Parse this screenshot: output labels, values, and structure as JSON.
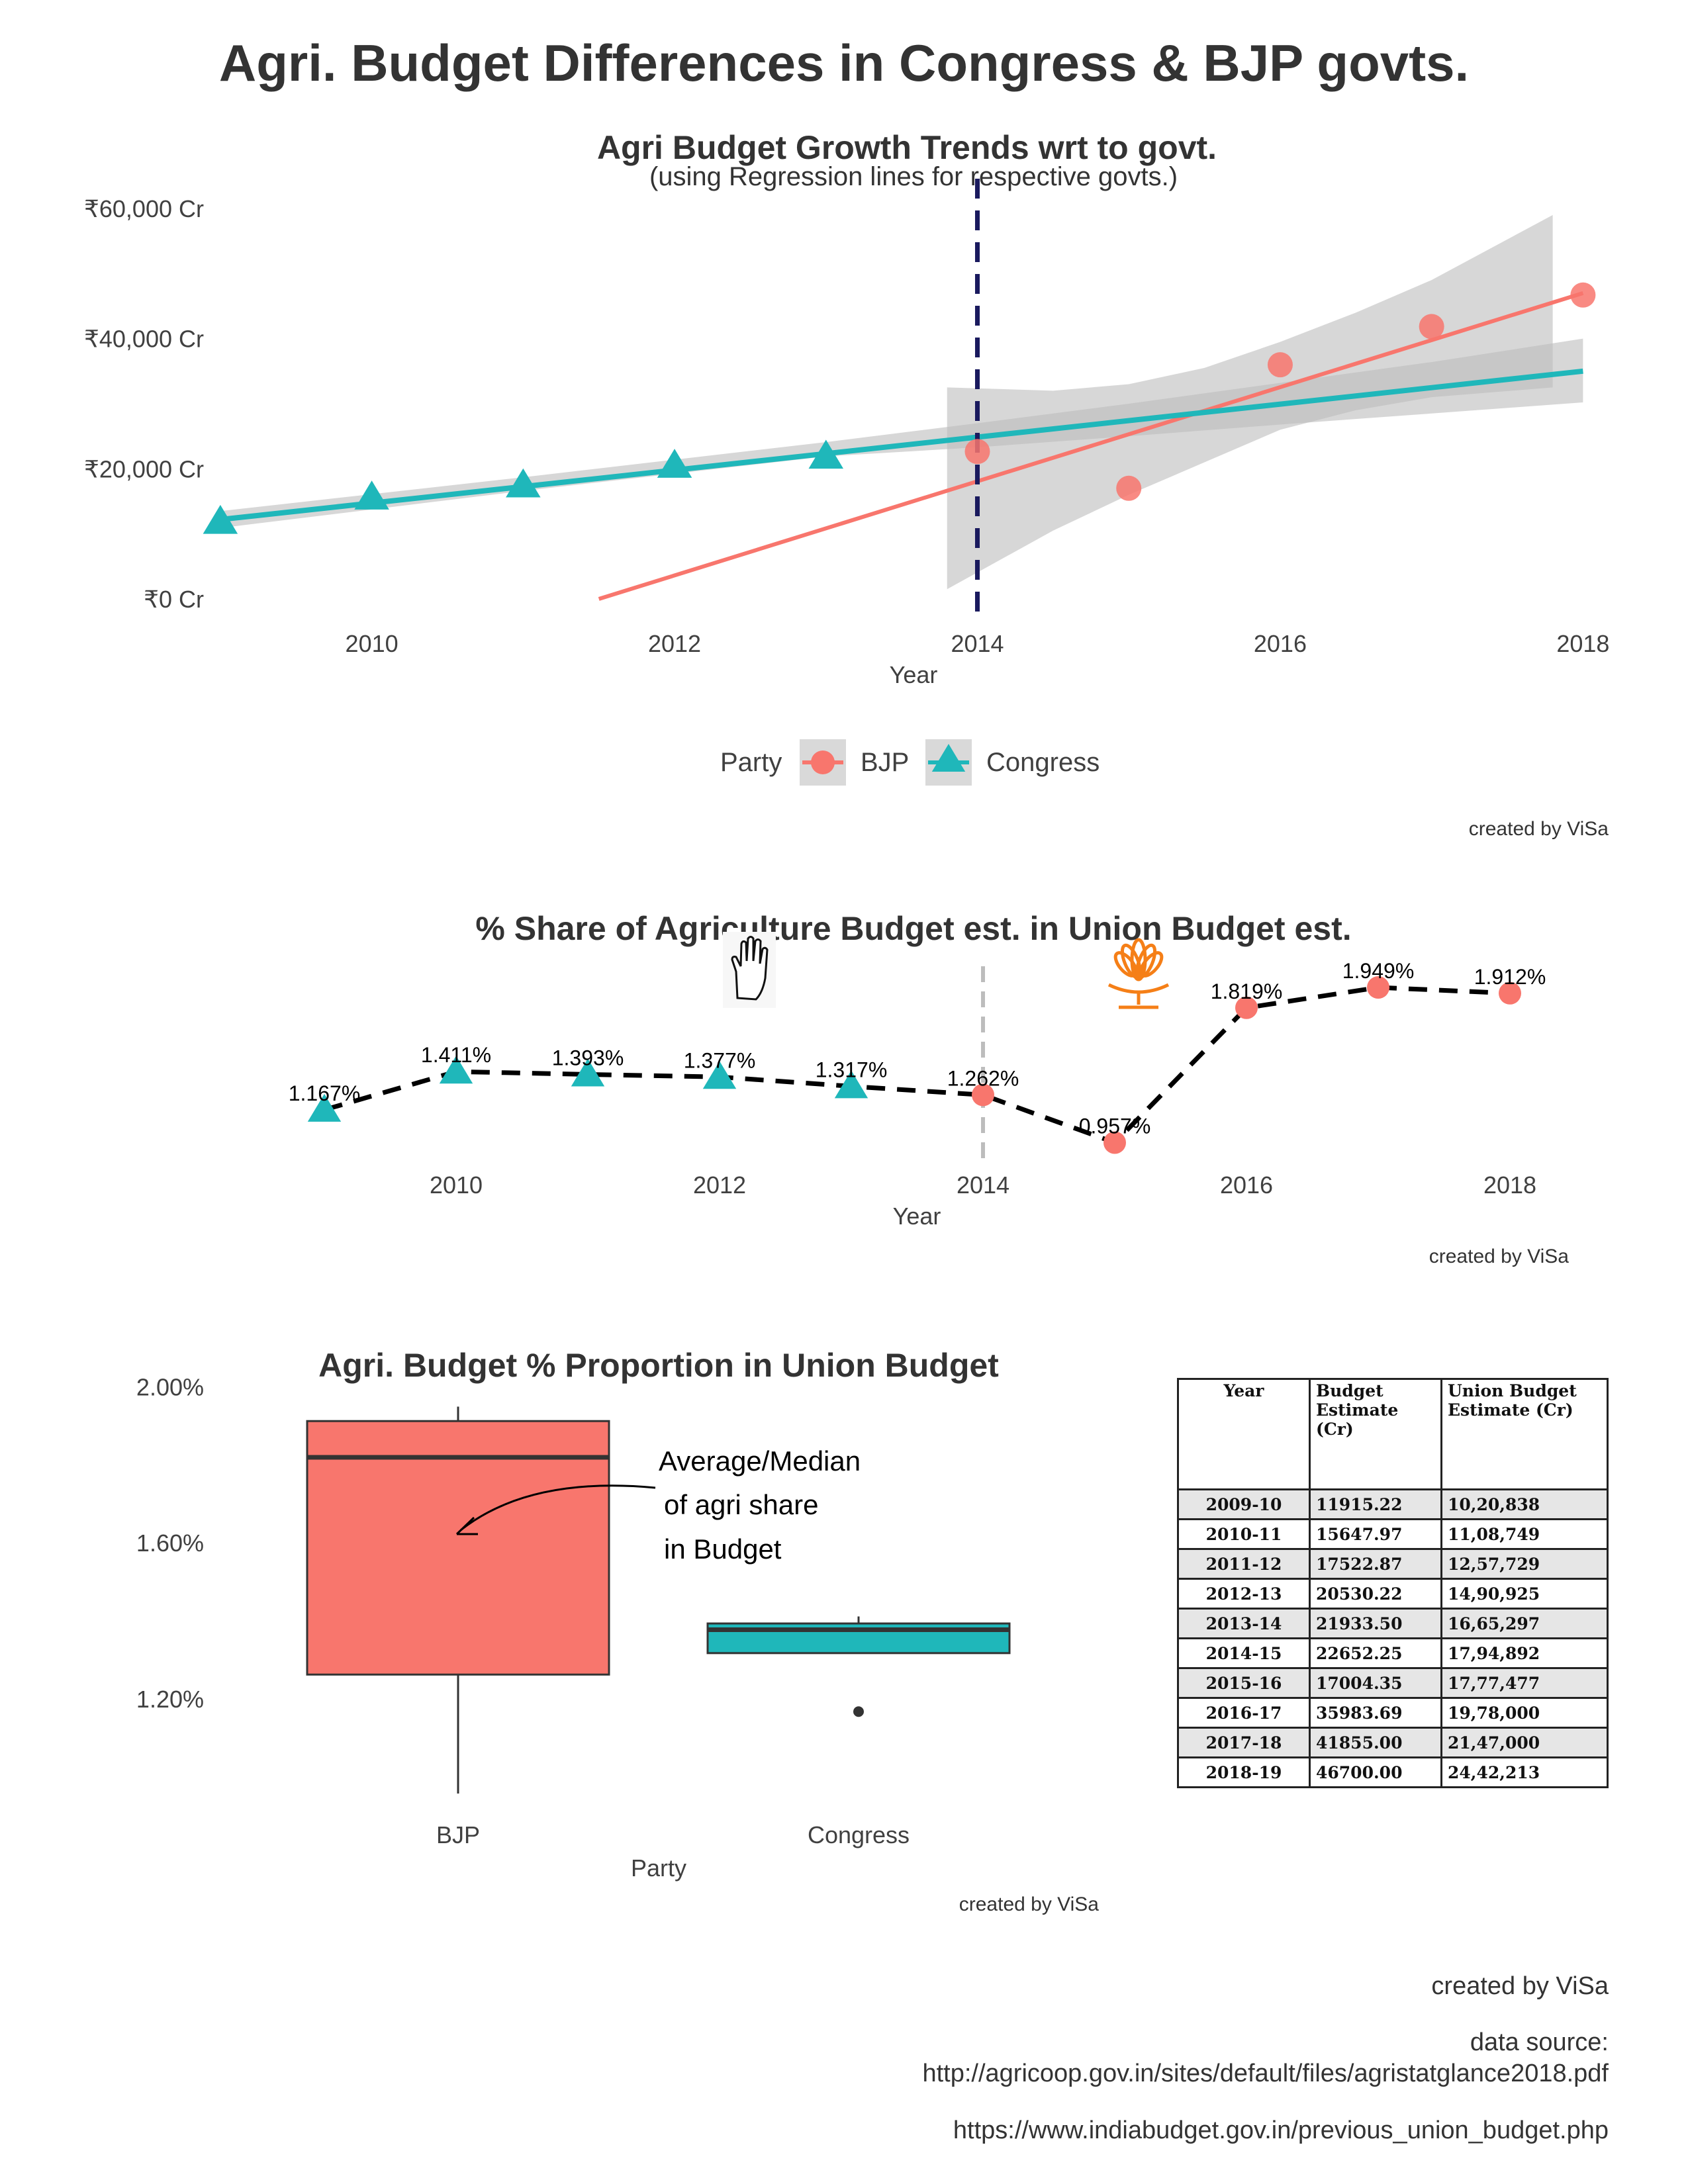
{
  "title": "Agri. Budget Differences in Congress & BJP govts.",
  "colors": {
    "bjp": "#F8766D",
    "congress": "#1FB7BA",
    "divider": "#1a1a5e",
    "band": "#bdbdbd"
  },
  "chart_data": [
    {
      "type": "scatter",
      "title": "Agri Budget Growth Trends wrt to govt.",
      "subtitle": "(using Regression lines for respective govts.)",
      "xlabel": "Year",
      "ylabel": "",
      "xlim": [
        2008.9,
        2018.3
      ],
      "ylim": [
        0,
        60000
      ],
      "x_ticks": [
        2010,
        2012,
        2014,
        2016,
        2018
      ],
      "y_ticks": [
        0,
        20000,
        40000,
        60000
      ],
      "y_tick_labels": [
        "₹0 Cr",
        "₹20,000 Cr",
        "₹40,000 Cr",
        "₹60,000 Cr"
      ],
      "vline": 2014,
      "legend_title": "Party",
      "legend_position": "bottom",
      "legend": [
        "BJP",
        "Congress"
      ],
      "credit": "created by ViSa",
      "series": [
        {
          "name": "BJP",
          "marker": "circle",
          "x": [
            2014,
            2015,
            2016,
            2017,
            2018
          ],
          "y": [
            22652.25,
            17004.35,
            35983.69,
            41855.0,
            46700.0
          ],
          "regression": {
            "x": [
              2011.5,
              2018
            ],
            "y": [
              0,
              47000
            ]
          },
          "ci": {
            "x": [
              2013.8,
              2014.5,
              2015,
              2015.5,
              2016,
              2016.5,
              2017,
              2017.8
            ],
            "upper": [
              32500,
              32000,
              33000,
              35500,
              39500,
              44000,
              49000,
              59000
            ],
            "lower": [
              1500,
              10500,
              16000,
              21000,
              26000,
              29000,
              31000,
              32500
            ]
          }
        },
        {
          "name": "Congress",
          "marker": "triangle",
          "x": [
            2009,
            2010,
            2011,
            2012,
            2013
          ],
          "y": [
            11915.22,
            15647.97,
            17522.87,
            20530.22,
            21933.5
          ],
          "regression": {
            "x": [
              2009,
              2018
            ],
            "y": [
              12200,
              35000
            ]
          },
          "ci": {
            "x": [
              2009,
              2011,
              2013,
              2014,
              2015,
              2016,
              2017,
              2018
            ],
            "upper": [
              13500,
              18700,
              24100,
              27000,
              30000,
              33200,
              36400,
              40000
            ],
            "lower": [
              10900,
              16600,
              21900,
              23300,
              25000,
              26800,
              28500,
              30200
            ]
          }
        }
      ]
    },
    {
      "type": "line",
      "title": "% Share of Agriculture Budget est. in Union Budget est.",
      "xlabel": "Year",
      "xlim": [
        2008.6,
        2018.6
      ],
      "ylim": [
        0.9,
        2.0
      ],
      "x_ticks": [
        2010,
        2012,
        2014,
        2016,
        2018
      ],
      "vline": 2014,
      "credit": "created by ViSa",
      "x": [
        2009,
        2010,
        2011,
        2012,
        2013,
        2014,
        2015,
        2016,
        2017,
        2018
      ],
      "y": [
        1.167,
        1.411,
        1.393,
        1.377,
        1.317,
        1.262,
        0.957,
        1.819,
        1.949,
        1.912
      ],
      "party": [
        "Congress",
        "Congress",
        "Congress",
        "Congress",
        "Congress",
        "BJP",
        "BJP",
        "BJP",
        "BJP",
        "BJP"
      ],
      "labels": [
        "1.167%",
        "1.411%",
        "1.393%",
        "1.377%",
        "1.317%",
        "1.262%",
        "0.957%",
        "1.819%",
        "1.949%",
        "1.912%"
      ],
      "icons": [
        "congress-hand-icon",
        "bjp-lotus-icon"
      ]
    },
    {
      "type": "box",
      "title": "Agri. Budget % Proportion in Union Budget",
      "xlabel": "Party",
      "categories": [
        "BJP",
        "Congress"
      ],
      "ylim": [
        0.94,
        2.06
      ],
      "y_ticks": [
        1.2,
        1.6,
        2.0
      ],
      "y_tick_labels": [
        "1.20%",
        "1.60%",
        "2.00%"
      ],
      "boxes": [
        {
          "name": "BJP",
          "min": 0.957,
          "q1": 1.262,
          "median": 1.819,
          "q3": 1.912,
          "max": 1.949,
          "outliers": []
        },
        {
          "name": "Congress",
          "min": 1.317,
          "q1": 1.317,
          "median": 1.377,
          "q3": 1.393,
          "max": 1.411,
          "outliers": [
            1.167
          ]
        }
      ],
      "annotation": [
        "Average/Median",
        " of agri share",
        " in Budget"
      ],
      "credit": "created by ViSa"
    }
  ],
  "table": {
    "headers": [
      "Year",
      "Budget Estimate (Cr)",
      "Union Budget Estimate (Cr)"
    ],
    "rows": [
      [
        "2009-10",
        "11915.22",
        "10,20,838"
      ],
      [
        "2010-11",
        "15647.97",
        "11,08,749"
      ],
      [
        "2011-12",
        "17522.87",
        "12,57,729"
      ],
      [
        "2012-13",
        "20530.22",
        "14,90,925"
      ],
      [
        "2013-14",
        "21933.50",
        "16,65,297"
      ],
      [
        "2014-15",
        "22652.25",
        "17,94,892"
      ],
      [
        "2015-16",
        "17004.35",
        "17,77,477"
      ],
      [
        "2016-17",
        "35983.69",
        "19,78,000"
      ],
      [
        "2017-18",
        "41855.00",
        "21,47,000"
      ],
      [
        "2018-19",
        "46700.00",
        "24,42,213"
      ]
    ]
  },
  "footer": {
    "credit": "created by ViSa",
    "source_label": "data source:",
    "source1": "http://agricoop.gov.in/sites/default/files/agristatglance2018.pdf",
    "source2": "https://www.indiabudget.gov.in/previous_union_budget.php"
  }
}
